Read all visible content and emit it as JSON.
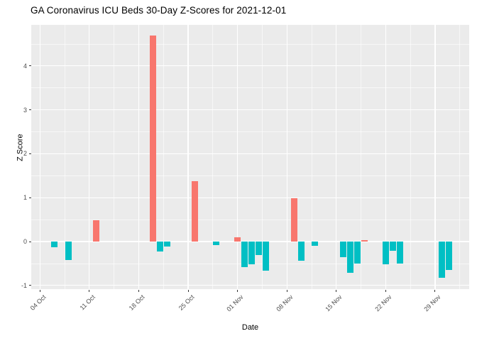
{
  "chart_data": {
    "type": "bar",
    "title": "GA Coronavirus ICU Beds 30-Day Z-Scores for 2021-12-01",
    "xlabel": "Date",
    "ylabel": "Z Score",
    "legend": "none",
    "grid": true,
    "y_ticks": [
      -1,
      0,
      1,
      2,
      3,
      4
    ],
    "ylim": [
      -1.08,
      4.94
    ],
    "x_ticks": [
      {
        "date": "2021-10-04",
        "label": "04 Oct"
      },
      {
        "date": "2021-10-11",
        "label": "11 Oct"
      },
      {
        "date": "2021-10-18",
        "label": "18 Oct"
      },
      {
        "date": "2021-10-25",
        "label": "25 Oct"
      },
      {
        "date": "2021-11-01",
        "label": "01 Nov"
      },
      {
        "date": "2021-11-08",
        "label": "08 Nov"
      },
      {
        "date": "2021-11-15",
        "label": "15 Nov"
      },
      {
        "date": "2021-11-22",
        "label": "22 Nov"
      },
      {
        "date": "2021-11-29",
        "label": "29 Nov"
      }
    ],
    "points": [
      {
        "date": "2021-10-06",
        "value": -0.13
      },
      {
        "date": "2021-10-08",
        "value": -0.42
      },
      {
        "date": "2021-10-12",
        "value": 0.49
      },
      {
        "date": "2021-10-20",
        "value": 4.7
      },
      {
        "date": "2021-10-21",
        "value": -0.22
      },
      {
        "date": "2021-10-22",
        "value": -0.11
      },
      {
        "date": "2021-10-26",
        "value": 1.37
      },
      {
        "date": "2021-10-29",
        "value": -0.08
      },
      {
        "date": "2021-11-01",
        "value": 0.09
      },
      {
        "date": "2021-11-02",
        "value": -0.59
      },
      {
        "date": "2021-11-03",
        "value": -0.51
      },
      {
        "date": "2021-11-04",
        "value": -0.3
      },
      {
        "date": "2021-11-05",
        "value": -0.66
      },
      {
        "date": "2021-11-09",
        "value": 0.98
      },
      {
        "date": "2021-11-10",
        "value": -0.43
      },
      {
        "date": "2021-11-12",
        "value": -0.1
      },
      {
        "date": "2021-11-16",
        "value": -0.36
      },
      {
        "date": "2021-11-17",
        "value": -0.72
      },
      {
        "date": "2021-11-18",
        "value": -0.5
      },
      {
        "date": "2021-11-19",
        "value": 0.03
      },
      {
        "date": "2021-11-22",
        "value": -0.51
      },
      {
        "date": "2021-11-23",
        "value": -0.21
      },
      {
        "date": "2021-11-24",
        "value": -0.5
      },
      {
        "date": "2021-11-30",
        "value": -0.82
      },
      {
        "date": "2021-12-01",
        "value": -0.64
      }
    ],
    "colors": {
      "positive": "#F8766D",
      "negative": "#00BFC4",
      "panel_bg": "#EBEBEB",
      "grid": "#FFFFFF",
      "tick_text": "#4D4D4D",
      "axis_text": "#000000"
    }
  }
}
